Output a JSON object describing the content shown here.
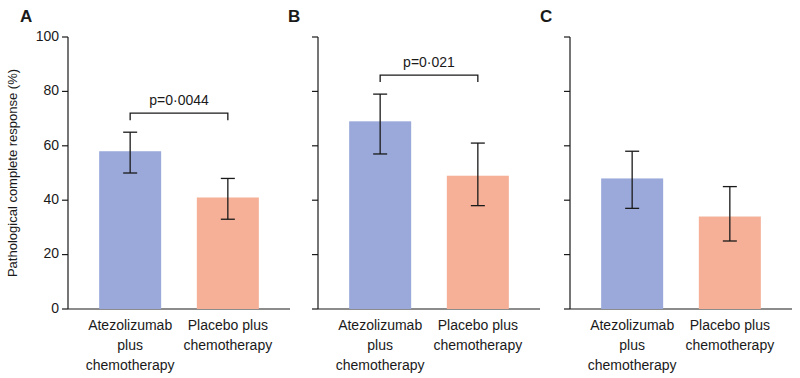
{
  "chart_data": [
    {
      "type": "bar",
      "title": "A",
      "y_label": "Pathological complete response (%)",
      "categories": [
        "Atezolizumab plus chemotherapy",
        "Placebo plus chemotherapy"
      ],
      "values": [
        58,
        41
      ],
      "ci_low": [
        50,
        33
      ],
      "ci_high": [
        65,
        48
      ],
      "colors": [
        "#9aa9da",
        "#f5b097"
      ],
      "ylim": [
        0,
        100
      ],
      "yticks": [
        0,
        20,
        40,
        60,
        80,
        100
      ],
      "annotations": [
        {
          "text": "p=0·0044"
        }
      ]
    },
    {
      "type": "bar",
      "title": "B",
      "categories": [
        "Atezolizumab plus chemotherapy",
        "Placebo plus chemotherapy"
      ],
      "values": [
        69,
        49
      ],
      "ci_low": [
        57,
        38
      ],
      "ci_high": [
        79,
        61
      ],
      "colors": [
        "#9aa9da",
        "#f5b097"
      ],
      "ylim": [
        0,
        100
      ],
      "yticks": [
        0,
        20,
        40,
        60,
        80,
        100
      ],
      "tick_labels": "x",
      "annotations": [
        {
          "text": "p=0·021"
        }
      ]
    },
    {
      "type": "bar",
      "title": "C",
      "categories": [
        "Atezolizumab plus chemotherapy",
        "Placebo plus chemotherapy"
      ],
      "values": [
        48,
        34
      ],
      "ci_low": [
        37,
        25
      ],
      "ci_high": [
        58,
        45
      ],
      "colors": [
        "#9aa9da",
        "#f5b097"
      ],
      "ylim": [
        0,
        100
      ],
      "yticks": [
        0,
        20,
        40,
        60,
        80,
        100
      ],
      "tick_labels": "x"
    }
  ]
}
